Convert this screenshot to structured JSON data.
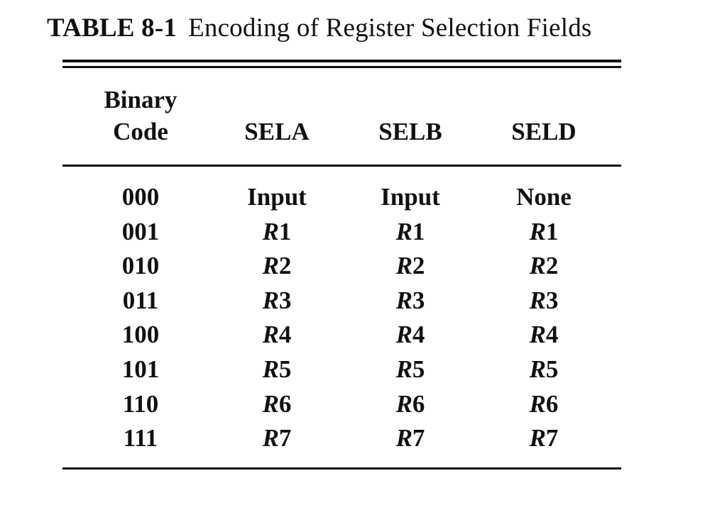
{
  "caption": {
    "label": "TABLE 8-1",
    "title": "Encoding of Register Selection Fields"
  },
  "table": {
    "header": {
      "binary_line1": "Binary",
      "binary_line2": "Code",
      "sela": "SELA",
      "selb": "SELB",
      "seld": "SELD"
    },
    "rows": [
      {
        "code": "000",
        "sela": "Input",
        "selb": "Input",
        "seld": "None"
      },
      {
        "code": "001",
        "sela": {
          "letter": "R",
          "num": "1"
        },
        "selb": {
          "letter": "R",
          "num": "1"
        },
        "seld": {
          "letter": "R",
          "num": "1"
        }
      },
      {
        "code": "010",
        "sela": {
          "letter": "R",
          "num": "2"
        },
        "selb": {
          "letter": "R",
          "num": "2"
        },
        "seld": {
          "letter": "R",
          "num": "2"
        }
      },
      {
        "code": "011",
        "sela": {
          "letter": "R",
          "num": "3"
        },
        "selb": {
          "letter": "R",
          "num": "3"
        },
        "seld": {
          "letter": "R",
          "num": "3"
        }
      },
      {
        "code": "100",
        "sela": {
          "letter": "R",
          "num": "4"
        },
        "selb": {
          "letter": "R",
          "num": "4"
        },
        "seld": {
          "letter": "R",
          "num": "4"
        }
      },
      {
        "code": "101",
        "sela": {
          "letter": "R",
          "num": "5"
        },
        "selb": {
          "letter": "R",
          "num": "5"
        },
        "seld": {
          "letter": "R",
          "num": "5"
        }
      },
      {
        "code": "110",
        "sela": {
          "letter": "R",
          "num": "6"
        },
        "selb": {
          "letter": "R",
          "num": "6"
        },
        "seld": {
          "letter": "R",
          "num": "6"
        }
      },
      {
        "code": "111",
        "sela": {
          "letter": "R",
          "num": "7"
        },
        "selb": {
          "letter": "R",
          "num": "7"
        },
        "seld": {
          "letter": "R",
          "num": "7"
        }
      }
    ]
  }
}
